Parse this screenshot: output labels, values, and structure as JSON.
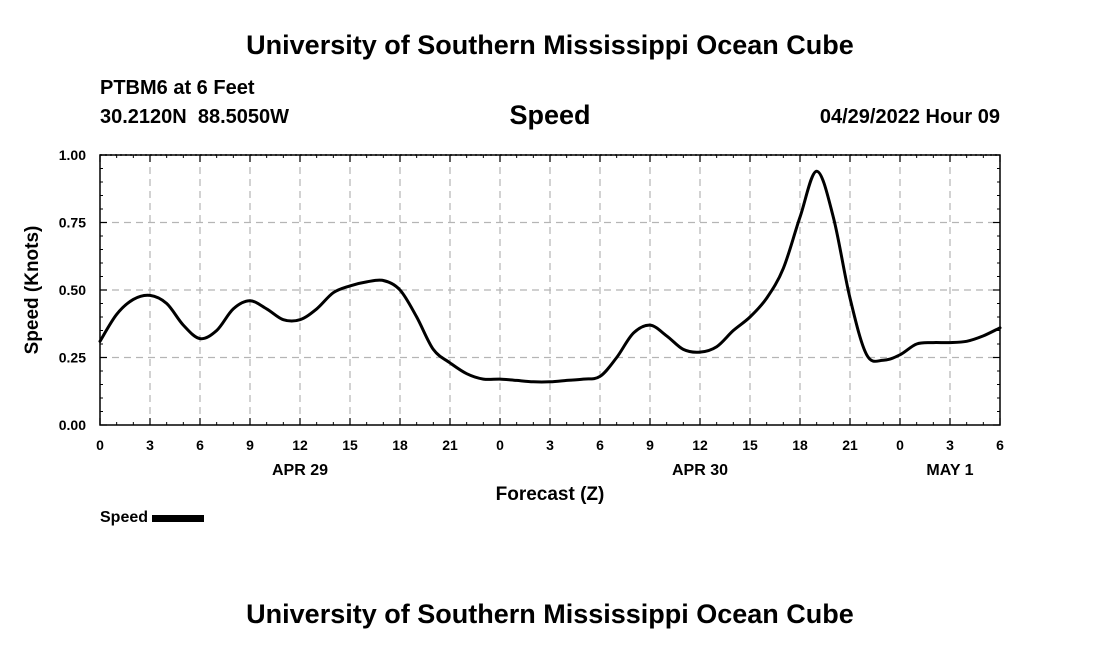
{
  "header": {
    "title": "University of Southern Mississippi Ocean Cube",
    "station": "PTBM6 at 6 Feet",
    "latitude": "30.2120N",
    "longitude": "88.5050W",
    "timestamp": "04/29/2022 Hour 09"
  },
  "footer": {
    "title": "University of Southern Mississippi Ocean Cube"
  },
  "legend": {
    "label": "Speed",
    "color": "#000000"
  },
  "chart_data": {
    "type": "line",
    "title": "Speed",
    "xlabel": "Forecast (Z)",
    "ylabel": "Speed (Knots)",
    "xlim": [
      0,
      54
    ],
    "ylim": [
      0,
      1.0
    ],
    "x_tick_values": [
      0,
      3,
      6,
      9,
      12,
      15,
      18,
      21,
      24,
      27,
      30,
      33,
      36,
      39,
      42,
      45,
      48,
      51,
      54
    ],
    "x_tick_labels": [
      "0",
      "3",
      "6",
      "9",
      "12",
      "15",
      "18",
      "21",
      "0",
      "3",
      "6",
      "9",
      "12",
      "15",
      "18",
      "21",
      "0",
      "3",
      "6"
    ],
    "y_tick_values": [
      0,
      0.25,
      0.5,
      0.75,
      1.0
    ],
    "y_tick_labels": [
      "0.00",
      "0.25",
      "0.50",
      "0.75",
      "1.00"
    ],
    "date_labels": [
      {
        "label": "APR 29",
        "at": 12
      },
      {
        "label": "APR 30",
        "at": 36
      },
      {
        "label": "MAY 1",
        "at": 51
      }
    ],
    "grid": true,
    "legend_position": "bottom-left",
    "series": [
      {
        "name": "Speed",
        "color": "#000000",
        "x": [
          0,
          1,
          2,
          3,
          4,
          5,
          6,
          7,
          8,
          9,
          10,
          11,
          12,
          13,
          14,
          15,
          16,
          17,
          18,
          19,
          20,
          21,
          22,
          23,
          24,
          25,
          26,
          27,
          28,
          29,
          30,
          31,
          32,
          33,
          34,
          35,
          36,
          37,
          38,
          39,
          40,
          41,
          42,
          43,
          44,
          45,
          46,
          47,
          48,
          49,
          50,
          51,
          52,
          53,
          54
        ],
        "y": [
          0.31,
          0.41,
          0.465,
          0.48,
          0.45,
          0.37,
          0.32,
          0.35,
          0.43,
          0.46,
          0.43,
          0.39,
          0.39,
          0.43,
          0.49,
          0.515,
          0.53,
          0.535,
          0.5,
          0.4,
          0.28,
          0.23,
          0.19,
          0.17,
          0.17,
          0.165,
          0.16,
          0.16,
          0.165,
          0.17,
          0.18,
          0.25,
          0.34,
          0.37,
          0.33,
          0.28,
          0.27,
          0.29,
          0.35,
          0.4,
          0.47,
          0.58,
          0.77,
          0.94,
          0.77,
          0.47,
          0.26,
          0.24,
          0.26,
          0.3,
          0.305,
          0.305,
          0.31,
          0.33,
          0.36
        ]
      }
    ]
  }
}
